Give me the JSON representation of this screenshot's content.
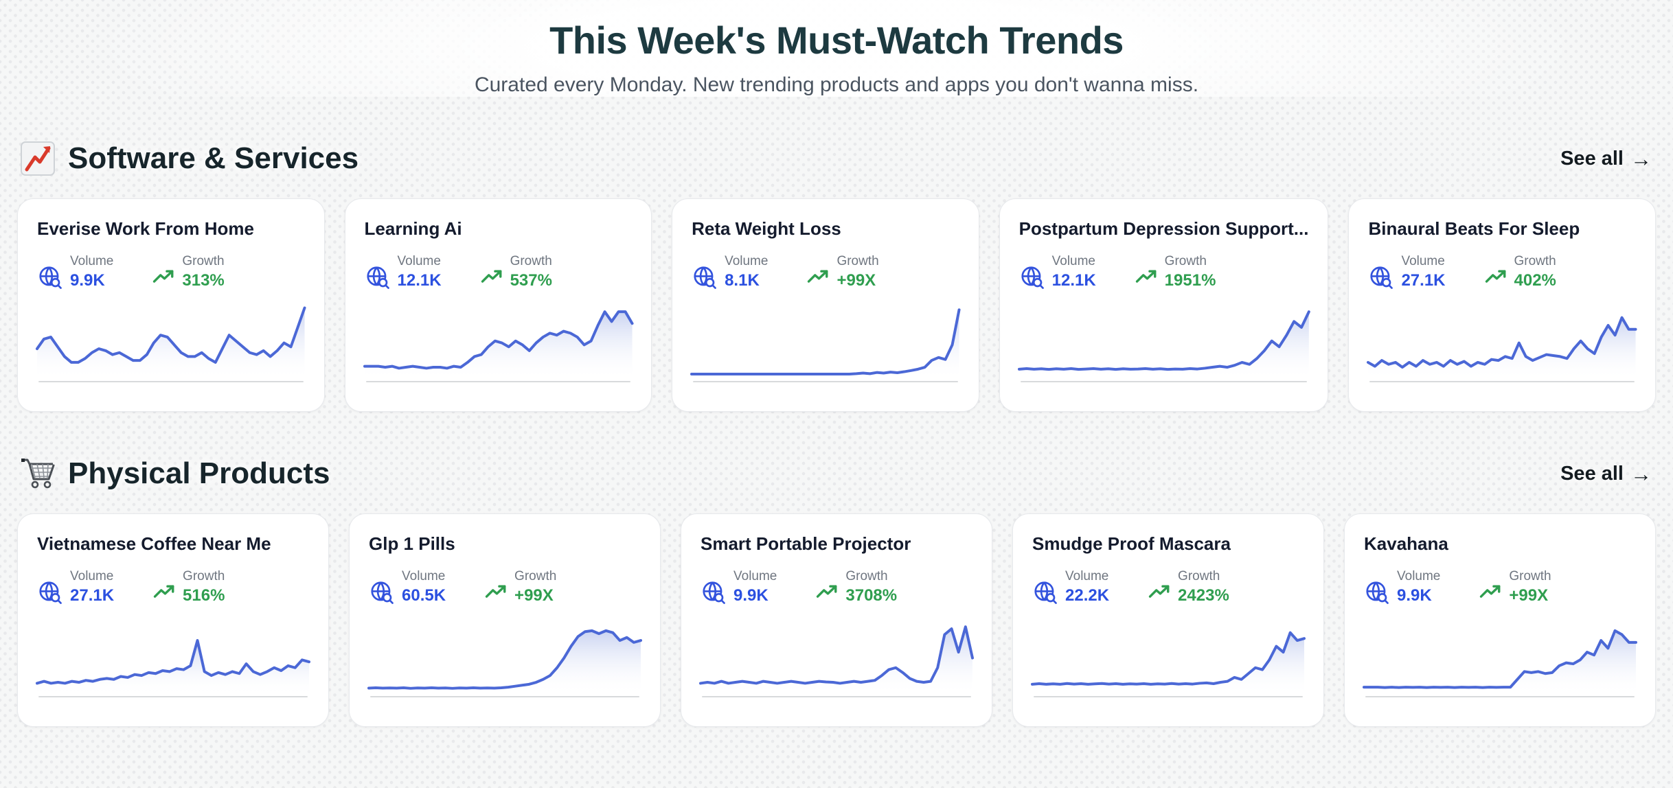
{
  "page": {
    "title": "This Week's Must-Watch Trends",
    "subtitle": "Curated every Monday. New trending products and apps you don't wanna miss."
  },
  "labels": {
    "volume": "Volume",
    "growth": "Growth",
    "see_all": "See all",
    "see_all_arrow": "→"
  },
  "colors": {
    "heading": "#1d3a40",
    "spark_line": "#4b68d6",
    "volume_blue": "#2b50e0",
    "growth_green": "#2f9e4f",
    "card_border": "#e7e9ec"
  },
  "icons": {
    "section_software": "chart-increasing-icon",
    "section_physical": "shopping-cart-icon",
    "volume": "globe-search-icon",
    "growth": "trending-up-icon"
  },
  "sections": [
    {
      "title": "Software & Services",
      "cards": [
        {
          "title": "Everise Work From Home",
          "volume": "9.9K",
          "growth": "313%",
          "spark": [
            24,
            19,
            18,
            23,
            28,
            31,
            31,
            29,
            26,
            24,
            25,
            27,
            26,
            28,
            30,
            30,
            27,
            21,
            17,
            18,
            22,
            26,
            28,
            28,
            26,
            29,
            31,
            24,
            17,
            20,
            23,
            26,
            27,
            25,
            28,
            25,
            21,
            23,
            13,
            3
          ]
        },
        {
          "title": "Learning Ai",
          "volume": "12.1K",
          "growth": "537%",
          "spark": [
            33,
            33,
            33,
            33.5,
            33,
            34,
            33.5,
            33,
            33.5,
            34,
            33.5,
            33.5,
            34,
            33,
            33.5,
            31,
            28,
            27,
            23,
            20,
            21,
            23,
            20,
            22,
            25,
            21,
            18,
            16,
            17,
            15,
            16,
            18,
            22,
            20,
            12,
            5,
            10,
            5,
            5,
            11
          ]
        },
        {
          "title": "Reta Weight Loss",
          "volume": "8.1K",
          "growth": "+99X",
          "spark": [
            37,
            37,
            37,
            37,
            37,
            37,
            37,
            37,
            37,
            37,
            37,
            37,
            37,
            37,
            37,
            37,
            37,
            37,
            37,
            37,
            37,
            37,
            37,
            37,
            36.8,
            36.5,
            36.8,
            36.2,
            36.5,
            36,
            36.3,
            35.8,
            35.2,
            34.5,
            33.5,
            30,
            28.5,
            29.5,
            22,
            4
          ]
        },
        {
          "title": "Postpartum Depression Support...",
          "volume": "12.1K",
          "growth": "1951%",
          "spark": [
            34.5,
            34.2,
            34.5,
            34.3,
            34.6,
            34.3,
            34.5,
            34.2,
            34.6,
            34.4,
            34.2,
            34.5,
            34.3,
            34.6,
            34.3,
            34.5,
            34.4,
            34.2,
            34.5,
            34.3,
            34.6,
            34.4,
            34.5,
            34.2,
            34.4,
            34,
            33.5,
            33,
            33.5,
            32.5,
            31,
            32,
            29,
            25,
            20,
            23,
            17,
            10,
            13,
            5
          ]
        },
        {
          "title": "Binaural Beats For Sleep",
          "volume": "27.1K",
          "growth": "402%",
          "spark": [
            31,
            33,
            30,
            32,
            31,
            33.5,
            31,
            33,
            30,
            32,
            31,
            33,
            30,
            32,
            30.5,
            33,
            31,
            32,
            29.5,
            30,
            28,
            29,
            21,
            28,
            30,
            28.5,
            27,
            27.5,
            28,
            29,
            24,
            20,
            24,
            26.5,
            18,
            12,
            17,
            8,
            14,
            14
          ]
        }
      ]
    },
    {
      "title": "Physical Products",
      "cards": [
        {
          "title": "Vietnamese Coffee Near Me",
          "volume": "27.1K",
          "growth": "516%",
          "spark": [
            34,
            33,
            34,
            33.5,
            34,
            33,
            33.5,
            32.5,
            33,
            32,
            31.5,
            32,
            30.5,
            31,
            29.5,
            30,
            28.5,
            29,
            27.5,
            28,
            26.5,
            27,
            25,
            12,
            28,
            30,
            28.5,
            29.5,
            28,
            29,
            24,
            28,
            29.5,
            28,
            26,
            27.5,
            25,
            26,
            22,
            23
          ]
        },
        {
          "title": "Glp 1 Pills",
          "volume": "60.5K",
          "growth": "+99X",
          "spark": [
            36.5,
            36.3,
            36.5,
            36.4,
            36.5,
            36.3,
            36.6,
            36.4,
            36.5,
            36.3,
            36.5,
            36.4,
            36.6,
            36.4,
            36.5,
            36.3,
            36.5,
            36.4,
            36.5,
            36.3,
            36,
            35.5,
            35,
            34.5,
            33.5,
            32,
            30,
            26,
            21,
            15,
            10,
            7.5,
            7,
            8.5,
            7,
            8,
            12,
            10.5,
            13,
            12
          ]
        },
        {
          "title": "Smart Portable Projector",
          "volume": "9.9K",
          "growth": "3708%",
          "spark": [
            34,
            33.5,
            34,
            33,
            34,
            33.5,
            33,
            33.5,
            34,
            33,
            33.5,
            34,
            33.5,
            33,
            33.5,
            34,
            33.5,
            33,
            33.3,
            33.5,
            34,
            33.5,
            33,
            33.5,
            33,
            32.5,
            30,
            27,
            26,
            28.5,
            31.5,
            33,
            33.5,
            33,
            26,
            9,
            6,
            18,
            5,
            21
          ]
        },
        {
          "title": "Smudge Proof Mascara",
          "volume": "22.2K",
          "growth": "2423%",
          "spark": [
            34.5,
            34.2,
            34.5,
            34.3,
            34.5,
            34.1,
            34.4,
            34.2,
            34.5,
            34.3,
            34.1,
            34.4,
            34.2,
            34.5,
            34.3,
            34.4,
            34.2,
            34.5,
            34.3,
            34.4,
            34.1,
            34.4,
            34.2,
            34.4,
            34,
            33.8,
            34.2,
            33.5,
            33,
            31,
            32,
            29,
            26,
            27,
            22,
            15,
            18,
            8,
            12,
            11
          ]
        },
        {
          "title": "Kavahana",
          "volume": "9.9K",
          "growth": "+99X",
          "spark": [
            36,
            36,
            36,
            36.2,
            36,
            36.2,
            36,
            36.1,
            36,
            36.2,
            36,
            36.1,
            36,
            36.2,
            36,
            36.1,
            36,
            36.2,
            36,
            36.1,
            36,
            36,
            32,
            28,
            28.5,
            28,
            29,
            28.5,
            25,
            23.5,
            24,
            22,
            18,
            19.5,
            12,
            16,
            7,
            9,
            13,
            13
          ]
        }
      ]
    }
  ]
}
